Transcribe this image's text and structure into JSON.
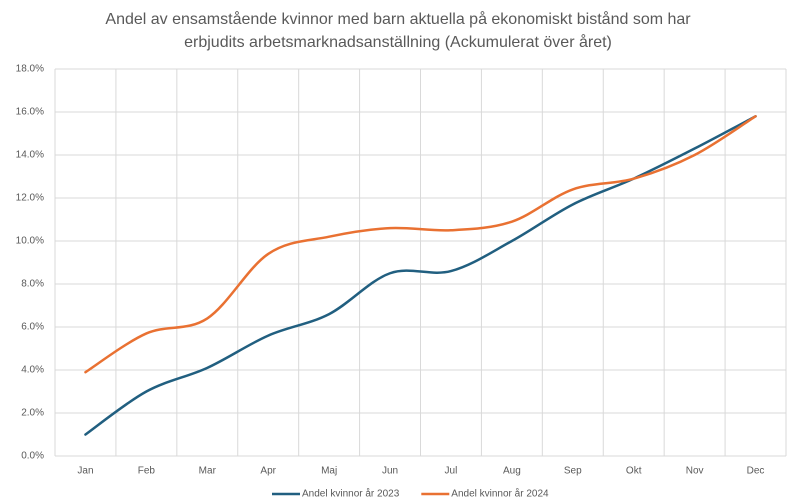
{
  "chart_data": {
    "type": "line",
    "title": "Andel av ensamstående kvinnor med barn aktuella på ekonomiskt bistånd som har erbjudits arbetsmarknadsanställning (Ackumulerat över året)",
    "categories": [
      "Jan",
      "Feb",
      "Mar",
      "Apr",
      "Maj",
      "Jun",
      "Jul",
      "Aug",
      "Sep",
      "Okt",
      "Nov",
      "Dec"
    ],
    "series": [
      {
        "name": "Andel kvinnor år 2023",
        "color": "#215f80",
        "values": [
          1.0,
          3.0,
          4.1,
          5.6,
          6.6,
          8.5,
          8.6,
          10.0,
          11.7,
          12.9,
          14.3,
          15.8
        ]
      },
      {
        "name": "Andel kvinnor år 2024",
        "color": "#e97132",
        "values": [
          3.9,
          5.7,
          6.4,
          9.4,
          10.2,
          10.6,
          10.5,
          10.9,
          12.4,
          12.9,
          14.0,
          15.8
        ]
      }
    ],
    "ylim": [
      0,
      18
    ],
    "yticks": [
      {
        "value": 0,
        "label": "0.0%"
      },
      {
        "value": 2,
        "label": "2.0%"
      },
      {
        "value": 4,
        "label": "4.0%"
      },
      {
        "value": 6,
        "label": "6.0%"
      },
      {
        "value": 8,
        "label": "8.0%"
      },
      {
        "value": 10,
        "label": "10.0%"
      },
      {
        "value": 12,
        "label": "12.0%"
      },
      {
        "value": 14,
        "label": "14.0%"
      },
      {
        "value": 16,
        "label": "16.0%"
      },
      {
        "value": 18,
        "label": "18.0%"
      }
    ],
    "grid": true,
    "legend": "bottom"
  }
}
